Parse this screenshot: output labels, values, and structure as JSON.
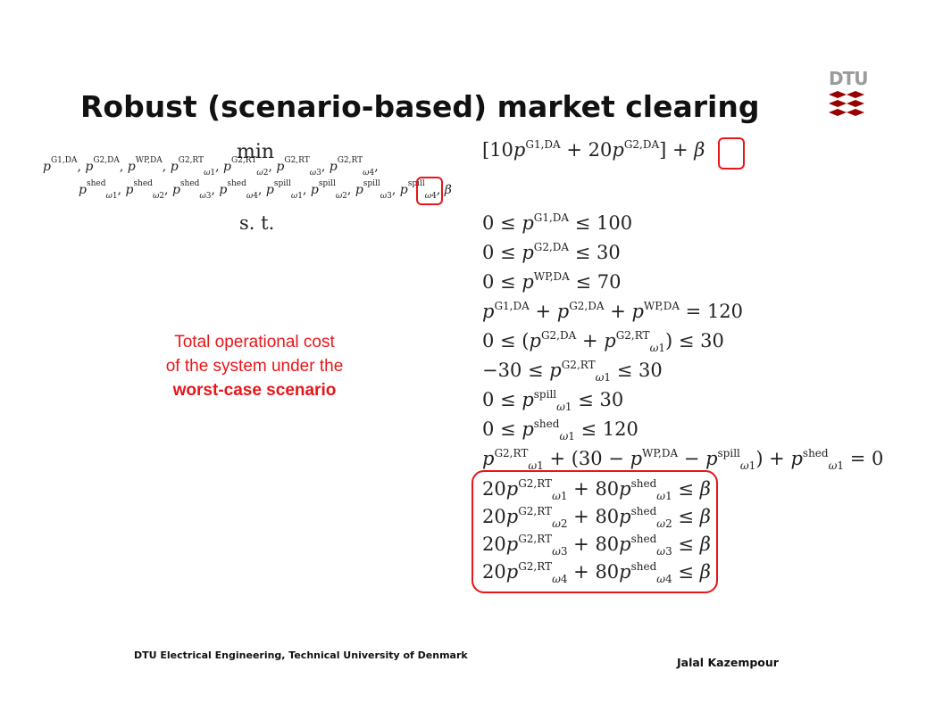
{
  "slide": {
    "title": "Robust (scenario-based) market clearing",
    "logo_text": "DTU",
    "footer_left": "DTU Electrical Engineering, Technical University of Denmark",
    "footer_right": "Jalal Kazempour",
    "note_line1": "Total operational cost",
    "note_line2": "of the system under the",
    "note_bold": "worst-case scenario"
  },
  "colors": {
    "accent": "#e8161a",
    "logo": "#990000",
    "logo_text": "#9b9b9b"
  },
  "math": {
    "min": "min",
    "st": "s. t.",
    "objective": "[10p^{G1,DA} + 20p^{G2,DA}] + β",
    "var_row1": "p^{G1,DA}, p^{G2,DA}, p^{WP,DA}, p^{G2,RT}_{ω1}, p^{G2,RT}_{ω2}, p^{G2,RT}_{ω3}, p^{G2,RT}_{ω4},",
    "var_row2": "p^{shed}_{ω1}, p^{shed}_{ω2}, p^{shed}_{ω3}, p^{shed}_{ω4}, p^{spill}_{ω1}, p^{spill}_{ω2}, p^{spill}_{ω3}, p^{spill}_{ω4}, β",
    "constraints": [
      "0 ≤ p^{G1,DA} ≤ 100",
      "0 ≤ p^{G2,DA} ≤ 30",
      "0 ≤ p^{WP,DA} ≤ 70",
      "p^{G1,DA} + p^{G2,DA} + p^{WP,DA} = 120",
      "0 ≤ (p^{G2,DA} + p^{G2,RT}_{ω1}) ≤ 30",
      "−30 ≤ p^{G2,RT}_{ω1} ≤ 30",
      "0 ≤ p^{spill}_{ω1} ≤ 30",
      "0 ≤ p^{shed}_{ω1} ≤ 120",
      "p^{G2,RT}_{ω1} + (30 − p^{WP,DA} − p^{spill}_{ω1}) + p^{shed}_{ω1} = 0",
      "20p^{G2,RT}_{ω1} + 80p^{shed}_{ω1} ≤ β",
      "20p^{G2,RT}_{ω2} + 80p^{shed}_{ω2} ≤ β",
      "20p^{G2,RT}_{ω3} + 80p^{shed}_{ω3} ≤ β",
      "20p^{G2,RT}_{ω4} + 80p^{shed}_{ω4} ≤ β"
    ]
  }
}
